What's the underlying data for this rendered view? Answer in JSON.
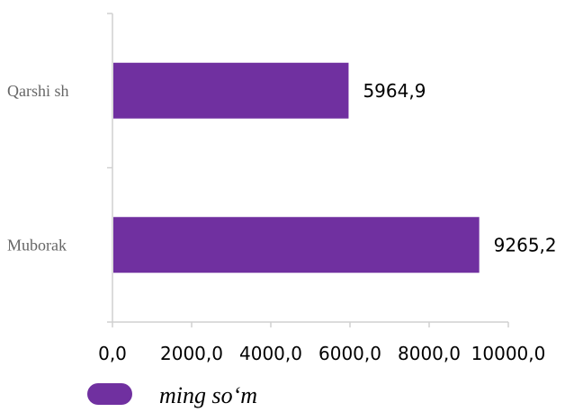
{
  "chart_data": {
    "type": "bar",
    "orientation": "horizontal",
    "categories": [
      "Qarshi  sh",
      "Muborak"
    ],
    "series": [
      {
        "name": "ming so‘m",
        "values": [
          5964.9,
          9265.2
        ],
        "value_labels": [
          "5964,9",
          "9265,2"
        ],
        "color": "#7030a0"
      }
    ],
    "x_ticks": [
      "0,0",
      "2000,0",
      "4000,0",
      "6000,0",
      "8000,0",
      "10000,0"
    ],
    "xlim": [
      0,
      10000
    ],
    "grid": false,
    "legend_position": "bottom-left"
  }
}
